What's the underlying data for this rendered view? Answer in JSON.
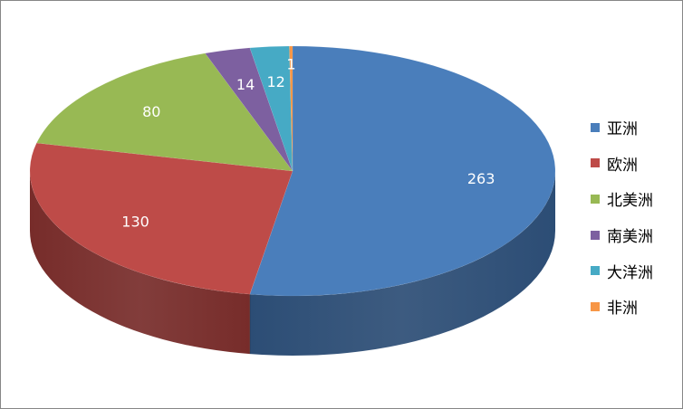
{
  "chart_data": {
    "type": "pie",
    "style": "3d",
    "legend_position": "right",
    "categories": [
      "亚洲",
      "欧洲",
      "北美洲",
      "南美洲",
      "大洋洲",
      "非洲"
    ],
    "values": [
      263,
      130,
      80,
      14,
      12,
      1
    ],
    "colors": [
      "#4A7EBB",
      "#BE4B48",
      "#98B954",
      "#7D60A0",
      "#46AAC5",
      "#F79646"
    ],
    "side_colors": [
      "#2C4D75",
      "#772C2A",
      "#5F7530",
      "#4D3B62",
      "#276A7C",
      "#B65708"
    ]
  }
}
